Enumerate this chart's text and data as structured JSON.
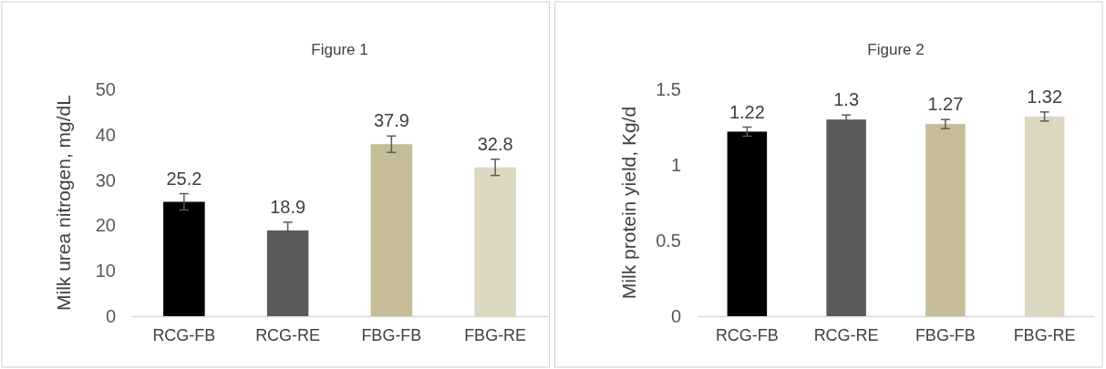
{
  "chart_data": [
    {
      "type": "bar",
      "title": "Figure 1",
      "ylabel": "Milk urea nitrogen, mg/dL",
      "categories": [
        "RCG-FB",
        "RCG-RE",
        "FBG-FB",
        "FBG-RE"
      ],
      "values": [
        25.2,
        18.9,
        37.9,
        32.8
      ],
      "colors": [
        "#000000",
        "#5a5a5a",
        "#c4bd97",
        "#dcd7c1"
      ],
      "errors": [
        1.8,
        1.8,
        1.8,
        1.8
      ],
      "data_labels": true,
      "ylim": [
        0,
        50
      ],
      "yticks": [
        0,
        10,
        20,
        30,
        40,
        50
      ]
    },
    {
      "type": "bar",
      "title": "Figure 2",
      "ylabel": "Milk protein yield, Kg/d",
      "categories": [
        "RCG-FB",
        "RCG-RE",
        "FBG-FB",
        "FBG-RE"
      ],
      "values": [
        1.22,
        1.3,
        1.27,
        1.32
      ],
      "colors": [
        "#000000",
        "#5a5a5a",
        "#c4bd97",
        "#dcd7c1"
      ],
      "errors": [
        0.03,
        0.03,
        0.03,
        0.03
      ],
      "data_labels": true,
      "ylim": [
        0,
        1.5
      ],
      "yticks": [
        0,
        0.5,
        1,
        1.5
      ]
    }
  ]
}
